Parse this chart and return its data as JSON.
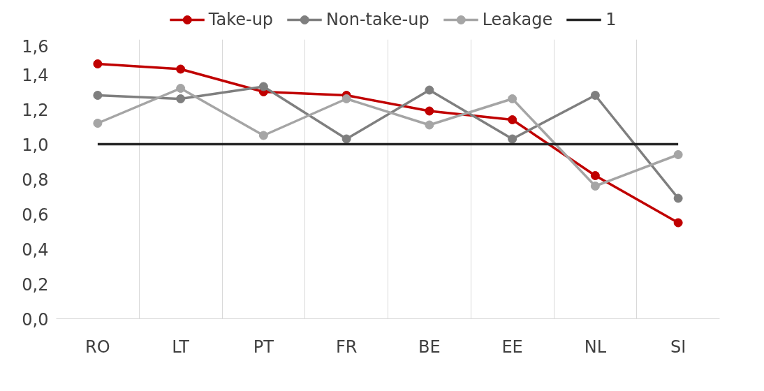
{
  "chart_data": {
    "type": "line",
    "categories": [
      "RO",
      "LT",
      "PT",
      "FR",
      "BE",
      "EE",
      "NL",
      "SI"
    ],
    "series": [
      {
        "name": "Take-up",
        "color": "#c00000",
        "marker": "circle",
        "values": [
          1.46,
          1.43,
          1.3,
          1.28,
          1.19,
          1.14,
          0.82,
          0.55
        ]
      },
      {
        "name": "Non-take-up",
        "color": "#7f7f7f",
        "marker": "circle",
        "values": [
          1.28,
          1.26,
          1.33,
          1.03,
          1.31,
          1.03,
          1.28,
          0.69
        ]
      },
      {
        "name": "Leakage",
        "color": "#a5a5a5",
        "marker": "circle",
        "values": [
          1.12,
          1.32,
          1.05,
          1.26,
          1.11,
          1.26,
          0.76,
          0.94
        ]
      },
      {
        "name": "1",
        "color": "#262626",
        "marker": "none",
        "values": [
          1,
          1,
          1,
          1,
          1,
          1,
          1,
          1
        ]
      }
    ],
    "ylim": [
      0,
      1.6
    ],
    "yticks": [
      {
        "value": 0,
        "label": "0,0"
      },
      {
        "value": 0.2,
        "label": "0,2"
      },
      {
        "value": 0.4,
        "label": "0,4"
      },
      {
        "value": 0.6,
        "label": "0,6"
      },
      {
        "value": 0.8,
        "label": "0,8"
      },
      {
        "value": 1.0,
        "label": "1,0"
      },
      {
        "value": 1.2,
        "label": "1,2"
      },
      {
        "value": 1.4,
        "label": "1,4"
      },
      {
        "value": 1.6,
        "label": "1,6"
      }
    ],
    "grid": "x",
    "legend": "top",
    "line_style": "solid"
  }
}
